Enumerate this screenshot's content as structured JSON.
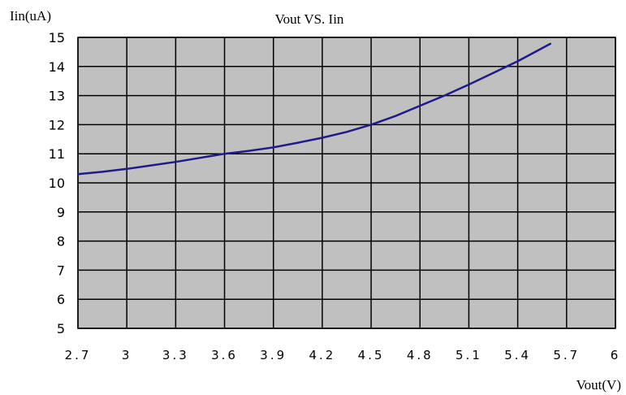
{
  "chart_data": {
    "type": "line",
    "title": "Vout VS. Iin",
    "xlabel": "Vout(V)",
    "ylabel": "Iin(uA)",
    "xlim": [
      2.7,
      6
    ],
    "ylim": [
      5,
      15
    ],
    "xticks": [
      "2.7",
      "3",
      "3.3",
      "3.6",
      "3.9",
      "4.2",
      "4.5",
      "4.8",
      "5.1",
      "5.4",
      "5.7",
      "6"
    ],
    "yticks": [
      "5",
      "6",
      "7",
      "8",
      "9",
      "10",
      "11",
      "12",
      "13",
      "14",
      "15"
    ],
    "grid": true,
    "series": [
      {
        "x": [
          2.7,
          2.85,
          3.0,
          3.15,
          3.3,
          3.45,
          3.6,
          3.75,
          3.9,
          4.05,
          4.2,
          4.35,
          4.5,
          4.65,
          4.8,
          4.95,
          5.1,
          5.25,
          5.4,
          5.5,
          5.6
        ],
        "y": [
          10.3,
          10.38,
          10.48,
          10.6,
          10.72,
          10.86,
          11.0,
          11.1,
          11.22,
          11.38,
          11.55,
          11.75,
          12.0,
          12.3,
          12.65,
          13.0,
          13.38,
          13.78,
          14.18,
          14.48,
          14.78
        ]
      }
    ],
    "colors": {
      "line": "#1c1c8a",
      "plot_bg": "#c0c0c0",
      "grid": "#000000"
    }
  }
}
